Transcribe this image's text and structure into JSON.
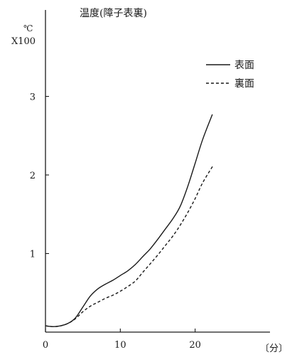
{
  "chart_data": {
    "type": "line",
    "title": "温度(障子表裏)",
    "ylabel_unit": "℃",
    "ylabel_scale": "X100",
    "xlabel": "〔分〕",
    "x_ticks": [
      0,
      10,
      20
    ],
    "y_ticks": [
      1,
      2,
      3
    ],
    "xlim": [
      0,
      30
    ],
    "ylim": [
      0,
      4.1
    ],
    "grid": false,
    "legend_position": "top-right",
    "series": [
      {
        "name": "表面",
        "style": "solid",
        "color": "#1a1a1a",
        "x": [
          0,
          1,
          2,
          3,
          4,
          5,
          6,
          7,
          8,
          9,
          10,
          11,
          12,
          13,
          14,
          15,
          16,
          17,
          18,
          19,
          20,
          21,
          22.3
        ],
        "y": [
          0.08,
          0.07,
          0.08,
          0.11,
          0.18,
          0.32,
          0.46,
          0.55,
          0.61,
          0.66,
          0.72,
          0.78,
          0.86,
          0.96,
          1.06,
          1.18,
          1.31,
          1.44,
          1.6,
          1.85,
          2.15,
          2.45,
          2.77
        ]
      },
      {
        "name": "裏面",
        "style": "dashed",
        "color": "#1a1a1a",
        "x": [
          0,
          1,
          2,
          3,
          4,
          5,
          6,
          7,
          8,
          9,
          10,
          11,
          12,
          13,
          14,
          15,
          16,
          17,
          18,
          19,
          20,
          21,
          22.4
        ],
        "y": [
          0.08,
          0.07,
          0.08,
          0.11,
          0.17,
          0.26,
          0.33,
          0.38,
          0.43,
          0.47,
          0.52,
          0.58,
          0.65,
          0.76,
          0.87,
          0.98,
          1.1,
          1.22,
          1.36,
          1.52,
          1.7,
          1.9,
          2.12
        ]
      }
    ]
  }
}
